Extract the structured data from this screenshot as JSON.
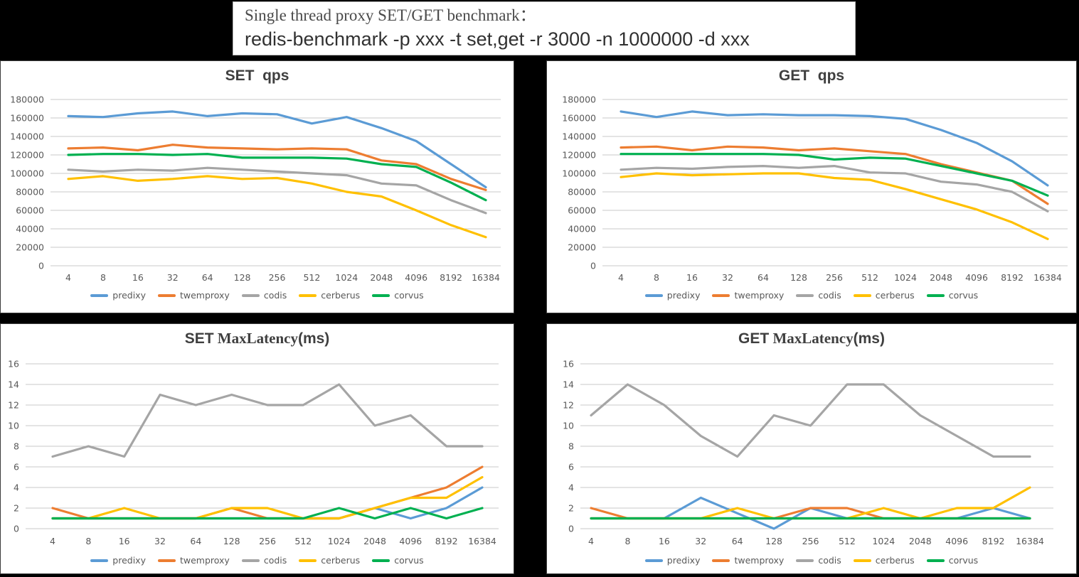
{
  "header": {
    "line1": "Single thread proxy SET/GET benchmark：",
    "line2": "redis-benchmark -p xxx -t set,get -r 3000 -n 1000000 -d xxx"
  },
  "colors": {
    "predixy": "#5B9BD5",
    "twemproxy": "#ED7D31",
    "codis": "#A5A5A5",
    "cerberus": "#FFC000",
    "corvus": "#00B050",
    "grid": "#C9C9C9",
    "tick_text": "#595959",
    "title_text": "#3F3F3F"
  },
  "chart_data": [
    {
      "type": "line",
      "title": {
        "bold": "SET",
        "serif": "",
        "tail": "  qps"
      },
      "xlabel": "",
      "ylabel": "",
      "grid": true,
      "legend_position": "bottom",
      "ylim": [
        0,
        180000
      ],
      "y_ticks": [
        "180000",
        "160000",
        "140000",
        "120000",
        "100000",
        "80000",
        "60000",
        "40000",
        "20000",
        "0"
      ],
      "categories": [
        "4",
        "8",
        "16",
        "32",
        "64",
        "128",
        "256",
        "512",
        "1024",
        "2048",
        "4096",
        "8192",
        "16384"
      ],
      "series": [
        {
          "name": "predixy",
          "values": [
            162000,
            161000,
            165000,
            167000,
            162000,
            165000,
            164000,
            154000,
            161000,
            149000,
            135000,
            110000,
            85000
          ]
        },
        {
          "name": "twemproxy",
          "values": [
            127000,
            128000,
            125000,
            131000,
            128000,
            127000,
            126000,
            127000,
            126000,
            114000,
            110000,
            94000,
            82000
          ]
        },
        {
          "name": "codis",
          "values": [
            104000,
            102000,
            104000,
            103000,
            106000,
            104000,
            102000,
            100000,
            98000,
            89000,
            87000,
            71000,
            57000
          ]
        },
        {
          "name": "cerberus",
          "values": [
            94000,
            97000,
            92000,
            94000,
            97000,
            94000,
            95000,
            89000,
            80000,
            75000,
            60000,
            44000,
            31000
          ]
        },
        {
          "name": "corvus",
          "values": [
            120000,
            121000,
            121000,
            120000,
            121000,
            117000,
            117000,
            117000,
            116000,
            110000,
            107000,
            90000,
            71000
          ]
        }
      ]
    },
    {
      "type": "line",
      "title": {
        "bold": "GET",
        "serif": "",
        "tail": "  qps"
      },
      "xlabel": "",
      "ylabel": "",
      "grid": true,
      "legend_position": "bottom",
      "ylim": [
        0,
        180000
      ],
      "y_ticks": [
        "180000",
        "160000",
        "140000",
        "120000",
        "100000",
        "80000",
        "60000",
        "40000",
        "20000",
        "0"
      ],
      "categories": [
        "4",
        "8",
        "16",
        "32",
        "64",
        "128",
        "256",
        "512",
        "1024",
        "2048",
        "4096",
        "8192",
        "16384"
      ],
      "series": [
        {
          "name": "predixy",
          "values": [
            167000,
            161000,
            167000,
            163000,
            164000,
            163000,
            163000,
            162000,
            159000,
            147000,
            133000,
            113000,
            87000
          ]
        },
        {
          "name": "twemproxy",
          "values": [
            128000,
            129000,
            125000,
            129000,
            128000,
            125000,
            127000,
            124000,
            121000,
            110000,
            101000,
            92000,
            67000
          ]
        },
        {
          "name": "codis",
          "values": [
            104000,
            106000,
            105000,
            107000,
            108000,
            106000,
            108000,
            101000,
            100000,
            91000,
            88000,
            80000,
            59000
          ]
        },
        {
          "name": "cerberus",
          "values": [
            96000,
            100000,
            98000,
            99000,
            100000,
            100000,
            95000,
            93000,
            83000,
            72000,
            61000,
            47000,
            29000
          ]
        },
        {
          "name": "corvus",
          "values": [
            121000,
            121000,
            121000,
            121000,
            121000,
            120000,
            115000,
            117000,
            116000,
            108000,
            100000,
            92000,
            76000
          ]
        }
      ]
    },
    {
      "type": "line",
      "title": {
        "bold": "SET",
        "serif": " MaxLatency",
        "tail": "(ms)"
      },
      "xlabel": "",
      "ylabel": "",
      "grid": true,
      "legend_position": "bottom",
      "ylim": [
        0,
        16
      ],
      "y_ticks": [
        "16",
        "14",
        "12",
        "10",
        "8",
        "6",
        "4",
        "2",
        "0"
      ],
      "categories": [
        "4",
        "8",
        "16",
        "32",
        "64",
        "128",
        "256",
        "512",
        "1024",
        "2048",
        "4096",
        "8192",
        "16384"
      ],
      "series": [
        {
          "name": "predixy",
          "values": [
            1,
            1,
            1,
            1,
            1,
            1,
            1,
            1,
            1,
            2,
            1,
            2,
            4
          ]
        },
        {
          "name": "twemproxy",
          "values": [
            2,
            1,
            1,
            1,
            1,
            2,
            1,
            1,
            1,
            2,
            3,
            4,
            6
          ]
        },
        {
          "name": "codis",
          "values": [
            7,
            8,
            7,
            13,
            12,
            13,
            12,
            12,
            14,
            10,
            11,
            8,
            8
          ]
        },
        {
          "name": "cerberus",
          "values": [
            1,
            1,
            2,
            1,
            1,
            2,
            2,
            1,
            1,
            2,
            3,
            3,
            5
          ]
        },
        {
          "name": "corvus",
          "values": [
            1,
            1,
            1,
            1,
            1,
            1,
            1,
            1,
            2,
            1,
            2,
            1,
            2
          ]
        }
      ]
    },
    {
      "type": "line",
      "title": {
        "bold": "GET",
        "serif": " MaxLatency",
        "tail": "(ms)"
      },
      "xlabel": "",
      "ylabel": "",
      "grid": true,
      "legend_position": "bottom",
      "ylim": [
        0,
        16
      ],
      "y_ticks": [
        "16",
        "14",
        "12",
        "10",
        "8",
        "6",
        "4",
        "2",
        "0"
      ],
      "categories": [
        "4",
        "8",
        "16",
        "32",
        "64",
        "128",
        "256",
        "512",
        "1024",
        "2048",
        "4096",
        "8192",
        "16384"
      ],
      "series": [
        {
          "name": "predixy",
          "values": [
            1,
            1,
            1,
            3,
            1.5,
            0,
            2,
            1,
            1,
            1,
            1,
            2,
            1
          ]
        },
        {
          "name": "twemproxy",
          "values": [
            2,
            1,
            1,
            1,
            1,
            1,
            2,
            2,
            1,
            1,
            1,
            1,
            1
          ]
        },
        {
          "name": "codis",
          "values": [
            11,
            14,
            12,
            9,
            7,
            11,
            10,
            14,
            14,
            11,
            9,
            7,
            7
          ]
        },
        {
          "name": "cerberus",
          "values": [
            1,
            1,
            1,
            1,
            2,
            1,
            1,
            1,
            2,
            1,
            2,
            2,
            4
          ]
        },
        {
          "name": "corvus",
          "values": [
            1,
            1,
            1,
            1,
            1,
            1,
            1,
            1,
            1,
            1,
            1,
            1,
            1
          ]
        }
      ]
    }
  ]
}
